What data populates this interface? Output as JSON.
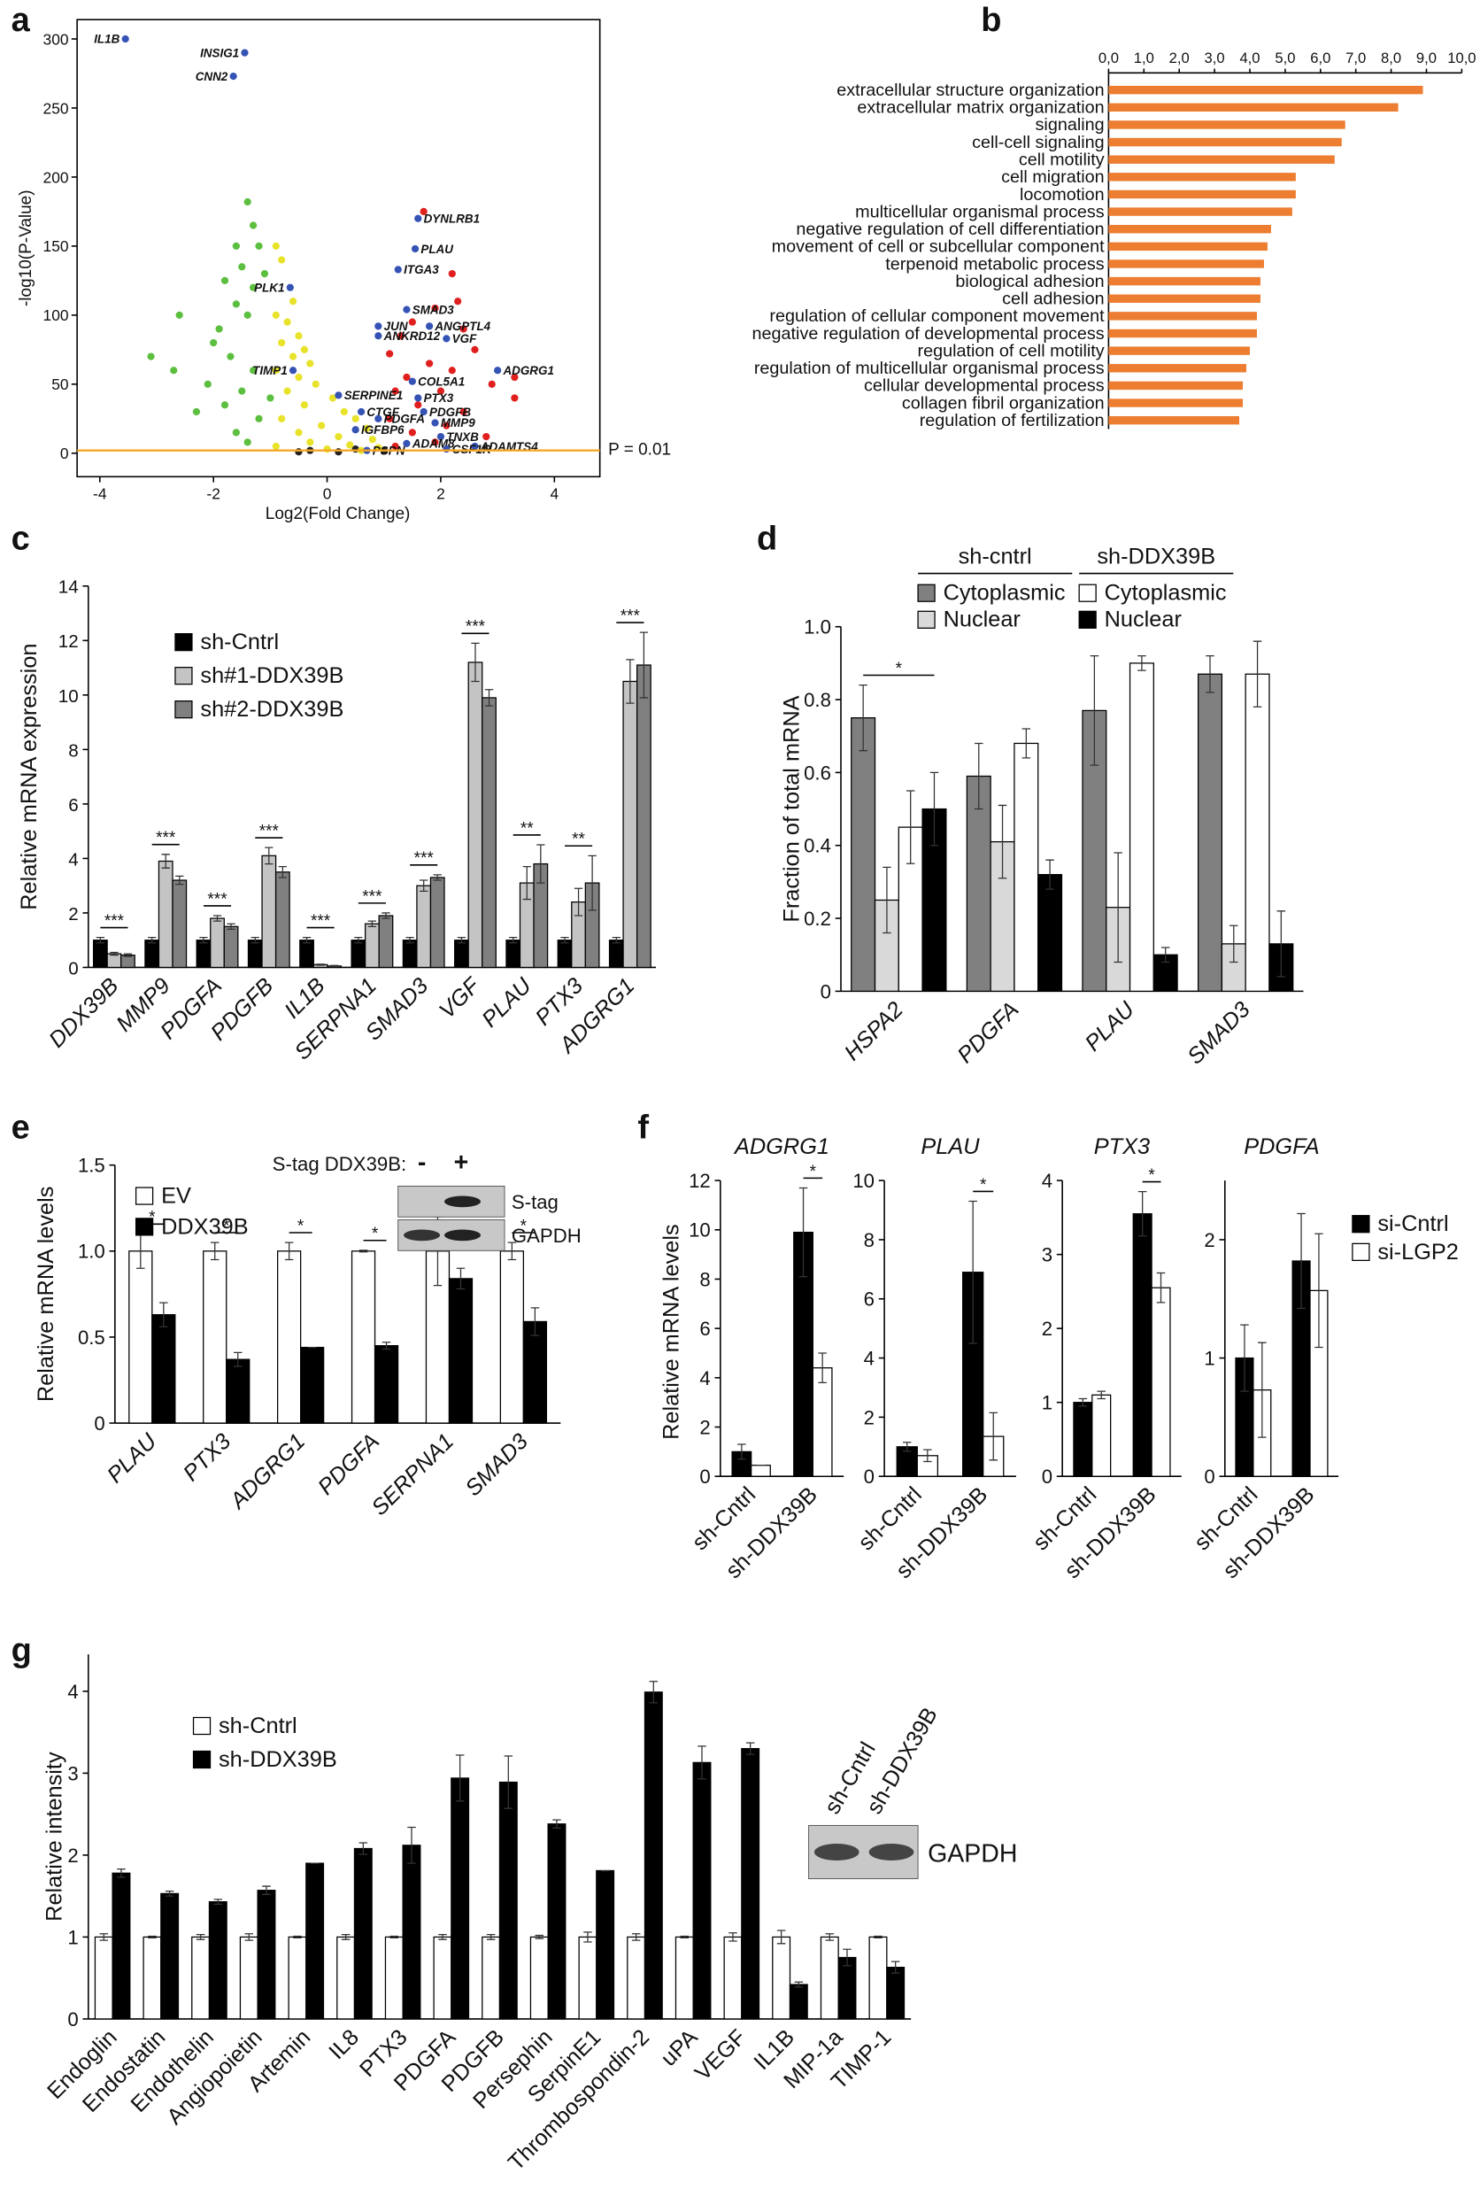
{
  "chart_data": [
    {
      "type": "scatter",
      "panel": "a",
      "xlabel": "Log2(Fold Change)",
      "ylabel": "-log10(P-Value)",
      "xlim": [
        -4.4,
        4.8
      ],
      "ylim": [
        -17,
        314
      ],
      "xticks": [
        -4,
        -2,
        0,
        2,
        4
      ],
      "yticks": [
        0,
        50,
        100,
        150,
        200,
        250,
        300
      ],
      "threshold": {
        "value": 2,
        "label": "P = 0.01",
        "color": "#f5a623"
      },
      "series": [
        {
          "color": "#222222",
          "x": [
            -0.3,
            0.2,
            0.5,
            -0.5,
            1.0
          ],
          "values": [
            2,
            1,
            3,
            1,
            2
          ]
        },
        {
          "color": "#e8e32a",
          "x": [
            -0.9,
            -0.8,
            -0.6,
            -0.9,
            -0.7,
            -0.5,
            -0.8,
            -0.4,
            -0.6,
            -0.3,
            -0.9,
            -0.5,
            -0.2,
            -0.7,
            0.1,
            -0.4,
            0.3,
            -0.8,
            0.5,
            -0.1,
            0.7,
            -0.5,
            0.2,
            0.8,
            -0.3,
            0.4,
            -0.9,
            0.9,
            0.0,
            0.6
          ],
          "values": [
            150,
            140,
            110,
            100,
            95,
            85,
            80,
            75,
            70,
            65,
            60,
            55,
            50,
            45,
            40,
            35,
            30,
            25,
            25,
            20,
            18,
            15,
            12,
            10,
            8,
            6,
            5,
            4,
            3,
            2
          ]
        },
        {
          "color": "#5cbf3f",
          "x": [
            -1.4,
            -1.3,
            -1.6,
            -1.2,
            -1.5,
            -1.1,
            -1.8,
            -1.3,
            -1.6,
            -2.6,
            -1.4,
            -1.9,
            -2.0,
            -3.1,
            -2.7,
            -1.7,
            -1.3,
            -2.1,
            -1.5,
            -1.0,
            -1.8,
            -1.2,
            -2.3,
            -1.6,
            -1.4
          ],
          "values": [
            182,
            165,
            150,
            150,
            135,
            130,
            125,
            120,
            108,
            100,
            100,
            90,
            80,
            70,
            60,
            70,
            60,
            50,
            45,
            40,
            35,
            25,
            30,
            15,
            8
          ]
        },
        {
          "color": "#e0201f",
          "x": [
            1.7,
            2.2,
            2.3,
            1.9,
            1.5,
            2.4,
            1.3,
            2.6,
            1.1,
            1.8,
            2.2,
            1.4,
            3.3,
            2.9,
            1.2,
            2.0,
            3.3,
            1.6,
            2.4,
            1.1,
            2.1,
            1.5,
            2.8,
            1.9,
            1.2
          ],
          "values": [
            175,
            130,
            110,
            105,
            95,
            90,
            85,
            75,
            72,
            65,
            60,
            55,
            55,
            50,
            45,
            45,
            40,
            35,
            30,
            25,
            20,
            15,
            12,
            8,
            5
          ]
        },
        {
          "color": "#3552b5",
          "x": [
            -3.55,
            -1.45,
            -1.65,
            1.6,
            1.55,
            1.25,
            -0.65,
            1.4,
            0.9,
            1.8,
            0.9,
            2.1,
            -0.6,
            3.0,
            1.5,
            0.2,
            1.6,
            1.7,
            0.6,
            0.9,
            1.9,
            0.5,
            2.0,
            1.4,
            2.6,
            0.7,
            2.1
          ],
          "values": [
            300,
            290,
            273,
            170,
            148,
            133,
            120,
            104,
            92,
            92,
            85,
            83,
            60,
            60,
            52,
            42,
            40,
            30,
            30,
            25,
            22,
            17,
            12,
            7,
            5,
            2,
            3
          ],
          "point_labels": [
            "IL1B",
            "INSIG1",
            "CNN2",
            "DYNLRB1",
            "PLAU",
            "ITGA3",
            "PLK1",
            "SMAD3",
            "JUN",
            "ANGPTL4",
            "ANKRD12",
            "VGF",
            "TIMP1",
            "ADGRG1",
            "COL5A1",
            "SERPINE1",
            "PTX3",
            "PDGFB",
            "CTGF",
            "PDGFA",
            "MMP9",
            "IGFBP6",
            "TNXB",
            "ADAM8",
            "ADAMTS4",
            "PSPN",
            "CSF1R"
          ]
        }
      ]
    },
    {
      "type": "barh",
      "panel": "b",
      "color": "#ed7d31",
      "xlim": [
        0,
        10
      ],
      "xticks": [
        {
          "value": 0,
          "label": "0,0"
        },
        {
          "value": 1,
          "label": "1,0"
        },
        {
          "value": 2,
          "label": "2,0"
        },
        {
          "value": 3,
          "label": "3,0"
        },
        {
          "value": 4,
          "label": "4,0"
        },
        {
          "value": 5,
          "label": "5,0"
        },
        {
          "value": 6,
          "label": "6,0"
        },
        {
          "value": 7,
          "label": "7,0"
        },
        {
          "value": 8,
          "label": "8,0"
        },
        {
          "value": 9,
          "label": "9,0"
        },
        {
          "value": 10,
          "label": "10,0"
        }
      ],
      "categories": [
        "extracellular structure organization",
        "extracellular matrix organization",
        "signaling",
        "cell-cell signaling",
        "cell motility",
        "cell migration",
        "locomotion",
        "multicellular organismal process",
        "negative regulation of cell differentiation",
        "movement of cell or subcellular component",
        "terpenoid metabolic process",
        "biological adhesion",
        "cell adhesion",
        "regulation of cellular component movement",
        "negative regulation of developmental process",
        "regulation of cell motility",
        "regulation of multicellular organismal process",
        "cellular developmental process",
        "collagen fibril organization",
        "regulation of fertilization"
      ],
      "values": [
        8.9,
        8.2,
        6.7,
        6.6,
        6.4,
        5.3,
        5.3,
        5.2,
        4.6,
        4.5,
        4.4,
        4.3,
        4.3,
        4.2,
        4.2,
        4.0,
        3.9,
        3.8,
        3.8,
        3.7
      ]
    },
    {
      "type": "bar",
      "panel": "c",
      "ylabel": "Relative mRNA expression",
      "ylim": [
        0,
        14
      ],
      "yticks": [
        0,
        2,
        4,
        6,
        8,
        10,
        12,
        14
      ],
      "legend": "upper left",
      "categories": [
        "DDX39B",
        "MMP9",
        "PDGFA",
        "PDGFB",
        "IL1B",
        "SERPNA1",
        "SMAD3",
        "VGF",
        "PLAU",
        "PTX3",
        "ADGRG1"
      ],
      "significance": [
        "***",
        "***",
        "***",
        "***",
        "***",
        "***",
        "***",
        "***",
        "**",
        "**",
        "***"
      ],
      "series": [
        {
          "name": "sh-Cntrl",
          "color": "#000000",
          "values": [
            1.0,
            1.0,
            1.0,
            1.0,
            1.0,
            1.0,
            1.0,
            1.0,
            1.0,
            1.0,
            1.0
          ],
          "errors": [
            0.1,
            0.1,
            0.1,
            0.1,
            0.1,
            0.1,
            0.1,
            0.1,
            0.1,
            0.1,
            0.1
          ]
        },
        {
          "name": "sh#1-DDX39B",
          "color": "#c4c4c4",
          "values": [
            0.5,
            3.9,
            1.8,
            4.1,
            0.1,
            1.6,
            3.0,
            11.2,
            3.1,
            2.4,
            10.5
          ],
          "errors": [
            0.05,
            0.25,
            0.1,
            0.3,
            0.02,
            0.1,
            0.2,
            0.7,
            0.6,
            0.5,
            0.8
          ]
        },
        {
          "name": "sh#2-DDX39B",
          "color": "#808080",
          "values": [
            0.45,
            3.2,
            1.5,
            3.5,
            0.05,
            1.9,
            3.3,
            9.9,
            3.8,
            3.1,
            11.1
          ],
          "errors": [
            0.05,
            0.15,
            0.1,
            0.2,
            0.02,
            0.1,
            0.1,
            0.3,
            0.7,
            1.0,
            1.2
          ]
        }
      ]
    },
    {
      "type": "bar",
      "panel": "d",
      "ylabel": "Fraction of total mRNA",
      "ylim": [
        0,
        1.0
      ],
      "yticks": [
        0,
        0.2,
        0.4,
        0.6,
        0.8,
        {
          "value": 1,
          "label": "1.0"
        }
      ],
      "legend": "top",
      "categories": [
        "HSPA2",
        "PDGFA",
        "PLAU",
        "SMAD3"
      ],
      "significance": [
        "*",
        null,
        null,
        null
      ],
      "series": [
        {
          "group": "sh-cntrl",
          "name": "Cytoplasmic",
          "color": "#808080",
          "values": [
            0.75,
            0.59,
            0.77,
            0.87
          ],
          "errors": [
            0.09,
            0.09,
            0.15,
            0.05
          ]
        },
        {
          "group": "sh-cntrl",
          "name": "Nuclear",
          "color": "#d9d9d9",
          "values": [
            0.25,
            0.41,
            0.23,
            0.13
          ],
          "errors": [
            0.09,
            0.1,
            0.15,
            0.05
          ]
        },
        {
          "group": "sh-DDX39B",
          "name": "Cytoplasmic",
          "color": "#ffffff",
          "values": [
            0.45,
            0.68,
            0.9,
            0.87
          ],
          "errors": [
            0.1,
            0.04,
            0.02,
            0.09
          ]
        },
        {
          "group": "sh-DDX39B",
          "name": "Nuclear",
          "color": "#000000",
          "values": [
            0.5,
            0.32,
            0.1,
            0.13
          ],
          "errors": [
            0.1,
            0.04,
            0.02,
            0.09
          ]
        }
      ]
    },
    {
      "type": "bar",
      "panel": "e",
      "ylabel": "Relative mRNA levels",
      "ylim": [
        0,
        1.5
      ],
      "yticks": [
        0,
        0.5,
        {
          "value": 1,
          "label": "1.0"
        },
        1.5
      ],
      "legend": "upper left",
      "categories": [
        "PLAU",
        "PTX3",
        "ADGRG1",
        "PDGFA",
        "SERPNA1",
        "SMAD3"
      ],
      "significance": [
        "*",
        "*",
        "*",
        "*",
        null,
        "*"
      ],
      "inset": {
        "title": "S-tag DDX39B:",
        "lanes": [
          "-",
          "+"
        ],
        "rows": [
          "S-tag",
          "GAPDH"
        ]
      },
      "series": [
        {
          "name": "EV",
          "color": "#ffffff",
          "values": [
            1,
            1,
            1,
            1,
            1,
            1
          ],
          "errors": [
            0.1,
            0.05,
            0.05,
            0.005,
            0.2,
            0.05
          ]
        },
        {
          "name": "DDX39B",
          "color": "#000000",
          "values": [
            0.63,
            0.37,
            0.44,
            0.45,
            0.84,
            0.59
          ],
          "errors": [
            0.07,
            0.04,
            0,
            0.02,
            0.06,
            0.08
          ]
        }
      ]
    },
    {
      "type": "bar",
      "panel": "f",
      "title": "ADGRG1",
      "ylabel": "Relative mRNA levels",
      "ylim": [
        0,
        12
      ],
      "yticks": [
        0,
        2,
        4,
        6,
        8,
        10,
        12
      ],
      "categories": [
        "sh-Cntrl",
        "sh-DDX39B"
      ],
      "significance": [
        null,
        "*"
      ],
      "series": [
        {
          "name": "si-Cntrl",
          "color": "#000000",
          "values": [
            1.0,
            9.9
          ],
          "errors": [
            0.3,
            1.8
          ]
        },
        {
          "name": "si-LGP2",
          "color": "#ffffff",
          "values": [
            0.45,
            4.4
          ],
          "errors": [
            0,
            0.6
          ]
        }
      ]
    },
    {
      "type": "bar",
      "title": "PLAU",
      "ylim": [
        0,
        10
      ],
      "yticks": [
        0,
        2,
        4,
        6,
        8,
        10
      ],
      "categories": [
        "sh-Cntrl",
        "sh-DDX39B"
      ],
      "significance": [
        null,
        "*"
      ],
      "series": [
        {
          "name": "si-Cntrl",
          "color": "#000000",
          "values": [
            1.0,
            6.9
          ],
          "errors": [
            0.15,
            2.4
          ]
        },
        {
          "name": "si-LGP2",
          "color": "#ffffff",
          "values": [
            0.7,
            1.35
          ],
          "errors": [
            0.2,
            0.8
          ]
        }
      ]
    },
    {
      "type": "bar",
      "title": "PTX3",
      "ylim": [
        0,
        4
      ],
      "yticks": [
        0,
        1,
        2,
        3,
        4
      ],
      "categories": [
        "sh-Cntrl",
        "sh-DDX39B"
      ],
      "significance": [
        null,
        "*"
      ],
      "series": [
        {
          "name": "si-Cntrl",
          "color": "#000000",
          "values": [
            1.0,
            3.55
          ],
          "errors": [
            0.05,
            0.3
          ]
        },
        {
          "name": "si-LGP2",
          "color": "#ffffff",
          "values": [
            1.1,
            2.55
          ],
          "errors": [
            0.05,
            0.2
          ]
        }
      ]
    },
    {
      "type": "bar",
      "title": "PDGFA",
      "ylim": [
        0,
        2.5
      ],
      "yticks": [
        0,
        1,
        2
      ],
      "legend": "right",
      "categories": [
        "sh-Cntrl",
        "sh-DDX39B"
      ],
      "series": [
        {
          "name": "si-Cntrl",
          "color": "#000000",
          "values": [
            1.0,
            1.82
          ],
          "errors": [
            0.28,
            0.4
          ]
        },
        {
          "name": "si-LGP2",
          "color": "#ffffff",
          "values": [
            0.73,
            1.57
          ],
          "errors": [
            0.4,
            0.48
          ]
        }
      ]
    },
    {
      "type": "bar",
      "panel": "g",
      "ylabel": "Relative intensity",
      "ylim": [
        0,
        4.45
      ],
      "yticks": [
        0,
        1,
        2,
        3,
        4
      ],
      "legend": "upper left",
      "categories": [
        "Endoglin",
        "Endostatin",
        "Endothelin",
        "Angiopoietin",
        "Artemin",
        "IL8",
        "PTX3",
        "PDGFA",
        "PDGFB",
        "Persephin",
        "SerpinE1",
        "Thrombospondin-2",
        "uPA",
        "VEGF",
        "IL1B",
        "MIP-1a",
        "TIMP-1"
      ],
      "inset": {
        "lanes": [
          "sh-Cntrl",
          "sh-DDX39B"
        ],
        "rows": [
          "GAPDH"
        ]
      },
      "series": [
        {
          "name": "sh-Cntrl",
          "color": "#ffffff",
          "values": [
            1,
            1,
            1,
            1,
            1,
            1,
            1,
            1,
            1,
            1,
            1,
            1,
            1,
            1,
            1,
            1,
            1
          ],
          "errors": [
            0.04,
            0.01,
            0.03,
            0.04,
            0.01,
            0.03,
            0.01,
            0.03,
            0.03,
            0.02,
            0.06,
            0.04,
            0.01,
            0.05,
            0.08,
            0.04,
            0.01
          ]
        },
        {
          "name": "sh-DDX39B",
          "color": "#000000",
          "values": [
            1.78,
            1.53,
            1.43,
            1.57,
            1.9,
            2.08,
            2.12,
            2.94,
            2.89,
            2.38,
            1.81,
            3.99,
            3.13,
            3.3,
            0.42,
            0.75,
            0.63
          ],
          "errors": [
            0.05,
            0.03,
            0.03,
            0.05,
            0,
            0.07,
            0.22,
            0.28,
            0.32,
            0.05,
            0,
            0.13,
            0.2,
            0.07,
            0.03,
            0.1,
            0.07
          ]
        }
      ]
    }
  ]
}
